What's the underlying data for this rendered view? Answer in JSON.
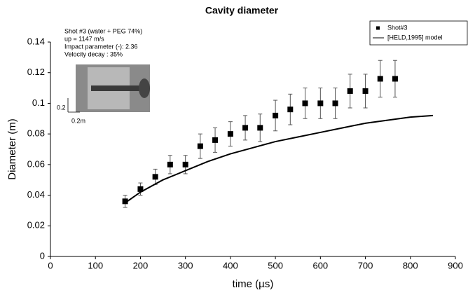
{
  "chart_data": {
    "type": "scatter",
    "title": "Cavity diameter",
    "x_label": "time (µs)",
    "y_label": "Diameter (m)",
    "xlim": [
      0,
      900
    ],
    "ylim": [
      0,
      0.14
    ],
    "xticks": [
      0,
      100,
      200,
      300,
      400,
      500,
      600,
      700,
      800,
      900
    ],
    "yticks": [
      0,
      0.02,
      0.04,
      0.06,
      0.08,
      0.1,
      0.12,
      0.14
    ],
    "grid": false,
    "legend": "upper right",
    "annotations": [
      "Shot #3 (water + PEG 74%)",
      "up = 1147 m/s",
      "Impact parameter (-): 2.36",
      "Velocity decay : 35%",
      "0.2",
      "0.2m"
    ],
    "series": [
      {
        "name": "Shot#3",
        "type": "scatter",
        "color": "#000000",
        "x": [
          166,
          200,
          233,
          266,
          300,
          333,
          366,
          400,
          433,
          466,
          500,
          533,
          566,
          600,
          633,
          666,
          700,
          733,
          766
        ],
        "values": [
          0.036,
          0.044,
          0.052,
          0.06,
          0.06,
          0.072,
          0.076,
          0.08,
          0.084,
          0.084,
          0.092,
          0.096,
          0.1,
          0.1,
          0.1,
          0.108,
          0.108,
          0.116,
          0.116
        ],
        "errors": [
          0.004,
          0.004,
          0.005,
          0.006,
          0.006,
          0.008,
          0.008,
          0.008,
          0.008,
          0.009,
          0.01,
          0.01,
          0.01,
          0.01,
          0.01,
          0.011,
          0.011,
          0.012,
          0.012
        ]
      },
      {
        "name": "[HELD,1995] model",
        "type": "line",
        "color": "#000000",
        "x": [
          166,
          200,
          250,
          300,
          350,
          400,
          450,
          500,
          550,
          600,
          650,
          700,
          750,
          800,
          850
        ],
        "values": [
          0.035,
          0.042,
          0.05,
          0.056,
          0.062,
          0.067,
          0.071,
          0.075,
          0.078,
          0.081,
          0.084,
          0.087,
          0.089,
          0.091,
          0.092
        ]
      }
    ]
  }
}
